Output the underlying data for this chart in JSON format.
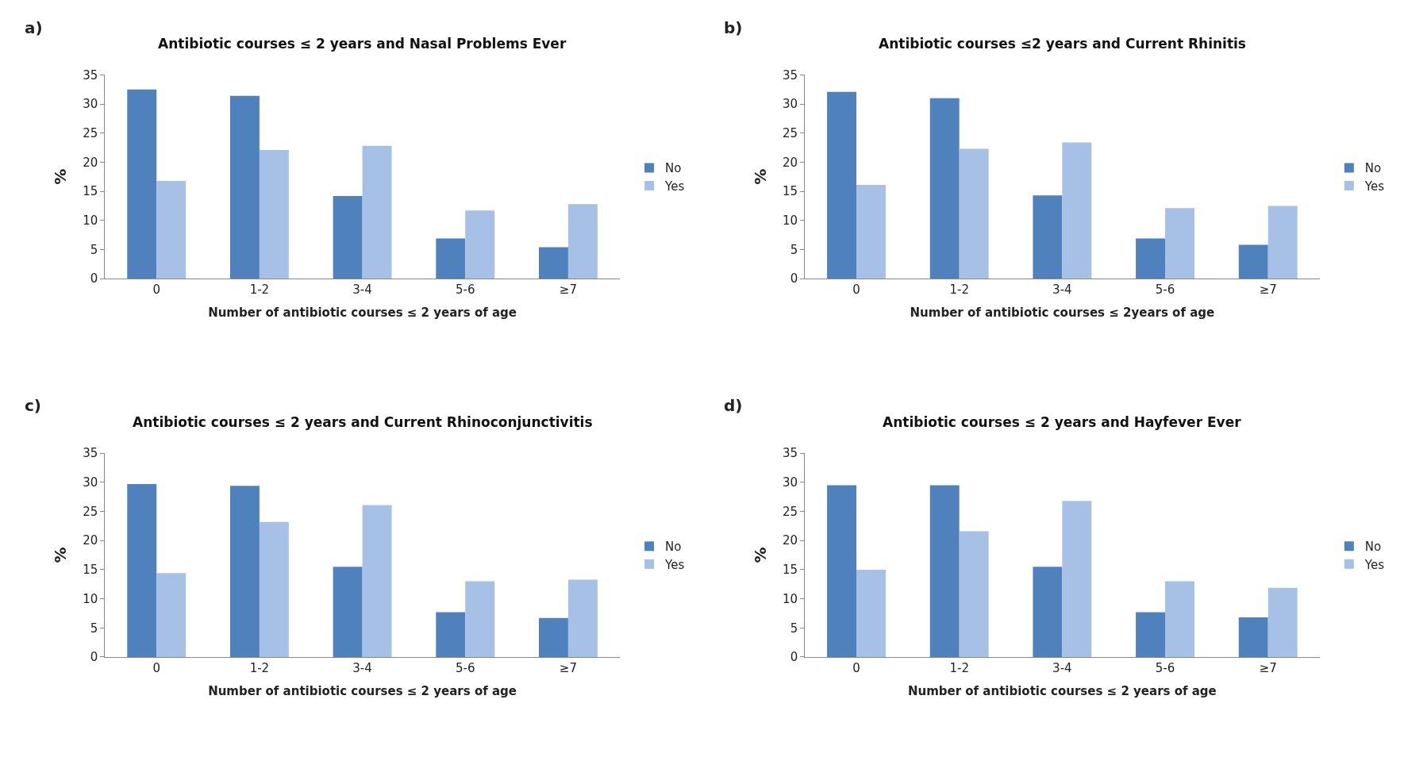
{
  "chart_data": [
    {
      "type": "bar",
      "title": "Antibiotic courses ≤ 2 years and Nasal Problems Ever",
      "xlabel": "Number of antibiotic courses ≤ 2 years of age",
      "ylabel": "%",
      "annotations": [
        "a)"
      ],
      "categories": [
        "0",
        "1-2",
        "3-4",
        "5-6",
        "≥7"
      ],
      "series": [
        {
          "name": "No",
          "color": "#4f81bd",
          "values": [
            32.5,
            31.4,
            14.2,
            6.9,
            5.4
          ]
        },
        {
          "name": "Yes",
          "color": "#a6c0e6",
          "values": [
            16.8,
            22.1,
            22.8,
            11.7,
            12.8
          ]
        }
      ],
      "ylim": [
        0,
        35
      ],
      "yticks": [
        0,
        5,
        10,
        15,
        20,
        25,
        30,
        35
      ],
      "legend": "right"
    },
    {
      "type": "bar",
      "title": "Antibiotic courses ≤2 years and Current Rhinitis",
      "xlabel": "Number of antibiotic courses ≤ 2years of age",
      "ylabel": "%",
      "annotations": [
        "b)"
      ],
      "categories": [
        "0",
        "1-2",
        "3-4",
        "5-6",
        "≥7"
      ],
      "series": [
        {
          "name": "No",
          "color": "#4f81bd",
          "values": [
            32.1,
            31.0,
            14.3,
            6.9,
            5.8
          ]
        },
        {
          "name": "Yes",
          "color": "#a6c0e6",
          "values": [
            16.1,
            22.3,
            23.4,
            12.1,
            12.5
          ]
        }
      ],
      "ylim": [
        0,
        35
      ],
      "yticks": [
        0,
        5,
        10,
        15,
        20,
        25,
        30,
        35
      ],
      "legend": "right"
    },
    {
      "type": "bar",
      "title": "Antibiotic courses ≤ 2 years and Current Rhinoconjunctivitis",
      "xlabel": "Number of antibiotic courses ≤ 2 years of age",
      "ylabel": "%",
      "annotations": [
        "c)"
      ],
      "categories": [
        "0",
        "1-2",
        "3-4",
        "5-6",
        "≥7"
      ],
      "series": [
        {
          "name": "No",
          "color": "#4f81bd",
          "values": [
            29.7,
            29.4,
            15.5,
            7.7,
            6.7
          ]
        },
        {
          "name": "Yes",
          "color": "#a6c0e6",
          "values": [
            14.4,
            23.2,
            26.1,
            13.0,
            13.3
          ]
        }
      ],
      "ylim": [
        0,
        35
      ],
      "yticks": [
        0,
        5,
        10,
        15,
        20,
        25,
        30,
        35
      ],
      "legend": "right"
    },
    {
      "type": "bar",
      "title": "Antibiotic courses ≤ 2 years and Hayfever Ever",
      "xlabel": "Number of antibiotic courses ≤ 2 years of age",
      "ylabel": "%",
      "annotations": [
        "d)"
      ],
      "categories": [
        "0",
        "1-2",
        "3-4",
        "5-6",
        "≥7"
      ],
      "series": [
        {
          "name": "No",
          "color": "#4f81bd",
          "values": [
            29.5,
            29.5,
            15.5,
            7.7,
            6.8
          ]
        },
        {
          "name": "Yes",
          "color": "#a6c0e6",
          "values": [
            15.0,
            21.6,
            26.8,
            13.0,
            11.9
          ]
        }
      ],
      "ylim": [
        0,
        35
      ],
      "yticks": [
        0,
        5,
        10,
        15,
        20,
        25,
        30,
        35
      ],
      "legend": "right"
    }
  ]
}
